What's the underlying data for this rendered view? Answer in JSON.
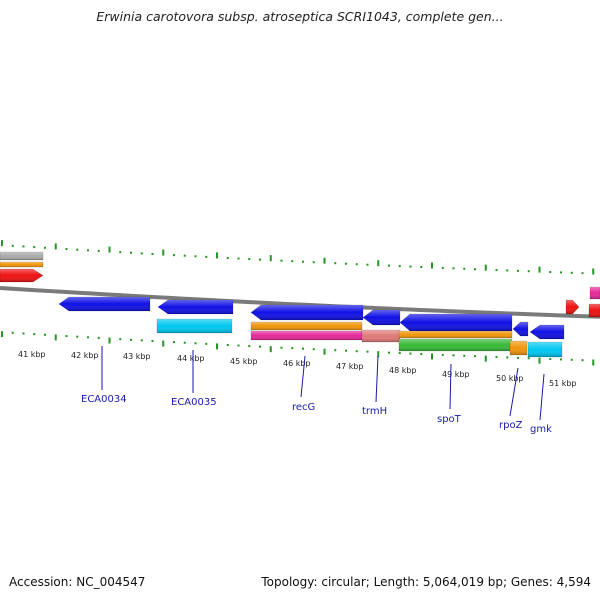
{
  "header": {
    "title": "Erwinia carotovora subsp. atroseptica SCRI1043, complete gen..."
  },
  "footer": {
    "accession": "Accession: NC_004547",
    "summary": "Topology: circular; Length: 5,064,019 bp; Genes: 4,594"
  },
  "colors": {
    "forward_gene": "#1010e6",
    "orf": "#00c8f0",
    "orange": "#f0960a",
    "magenta": "#e6289a",
    "salmon": "#e07878",
    "green": "#37b937",
    "red": "#ee1111",
    "grey": "#aaaaaa",
    "tick": "#239623",
    "backbone": "#7a7a7a",
    "label": "#1a1aa8"
  },
  "kbp_ticks": [
    "41 kbp",
    "42 kbp",
    "43 kbp",
    "44 kbp",
    "45 kbp",
    "46 kbp",
    "47 kbp",
    "48 kbp",
    "49 kbp",
    "50 kbp",
    "51 kbp"
  ],
  "gene_labels": [
    "ECA0034",
    "ECA0035",
    "recG",
    "trmH",
    "spoT",
    "rpoZ",
    "gmk"
  ]
}
